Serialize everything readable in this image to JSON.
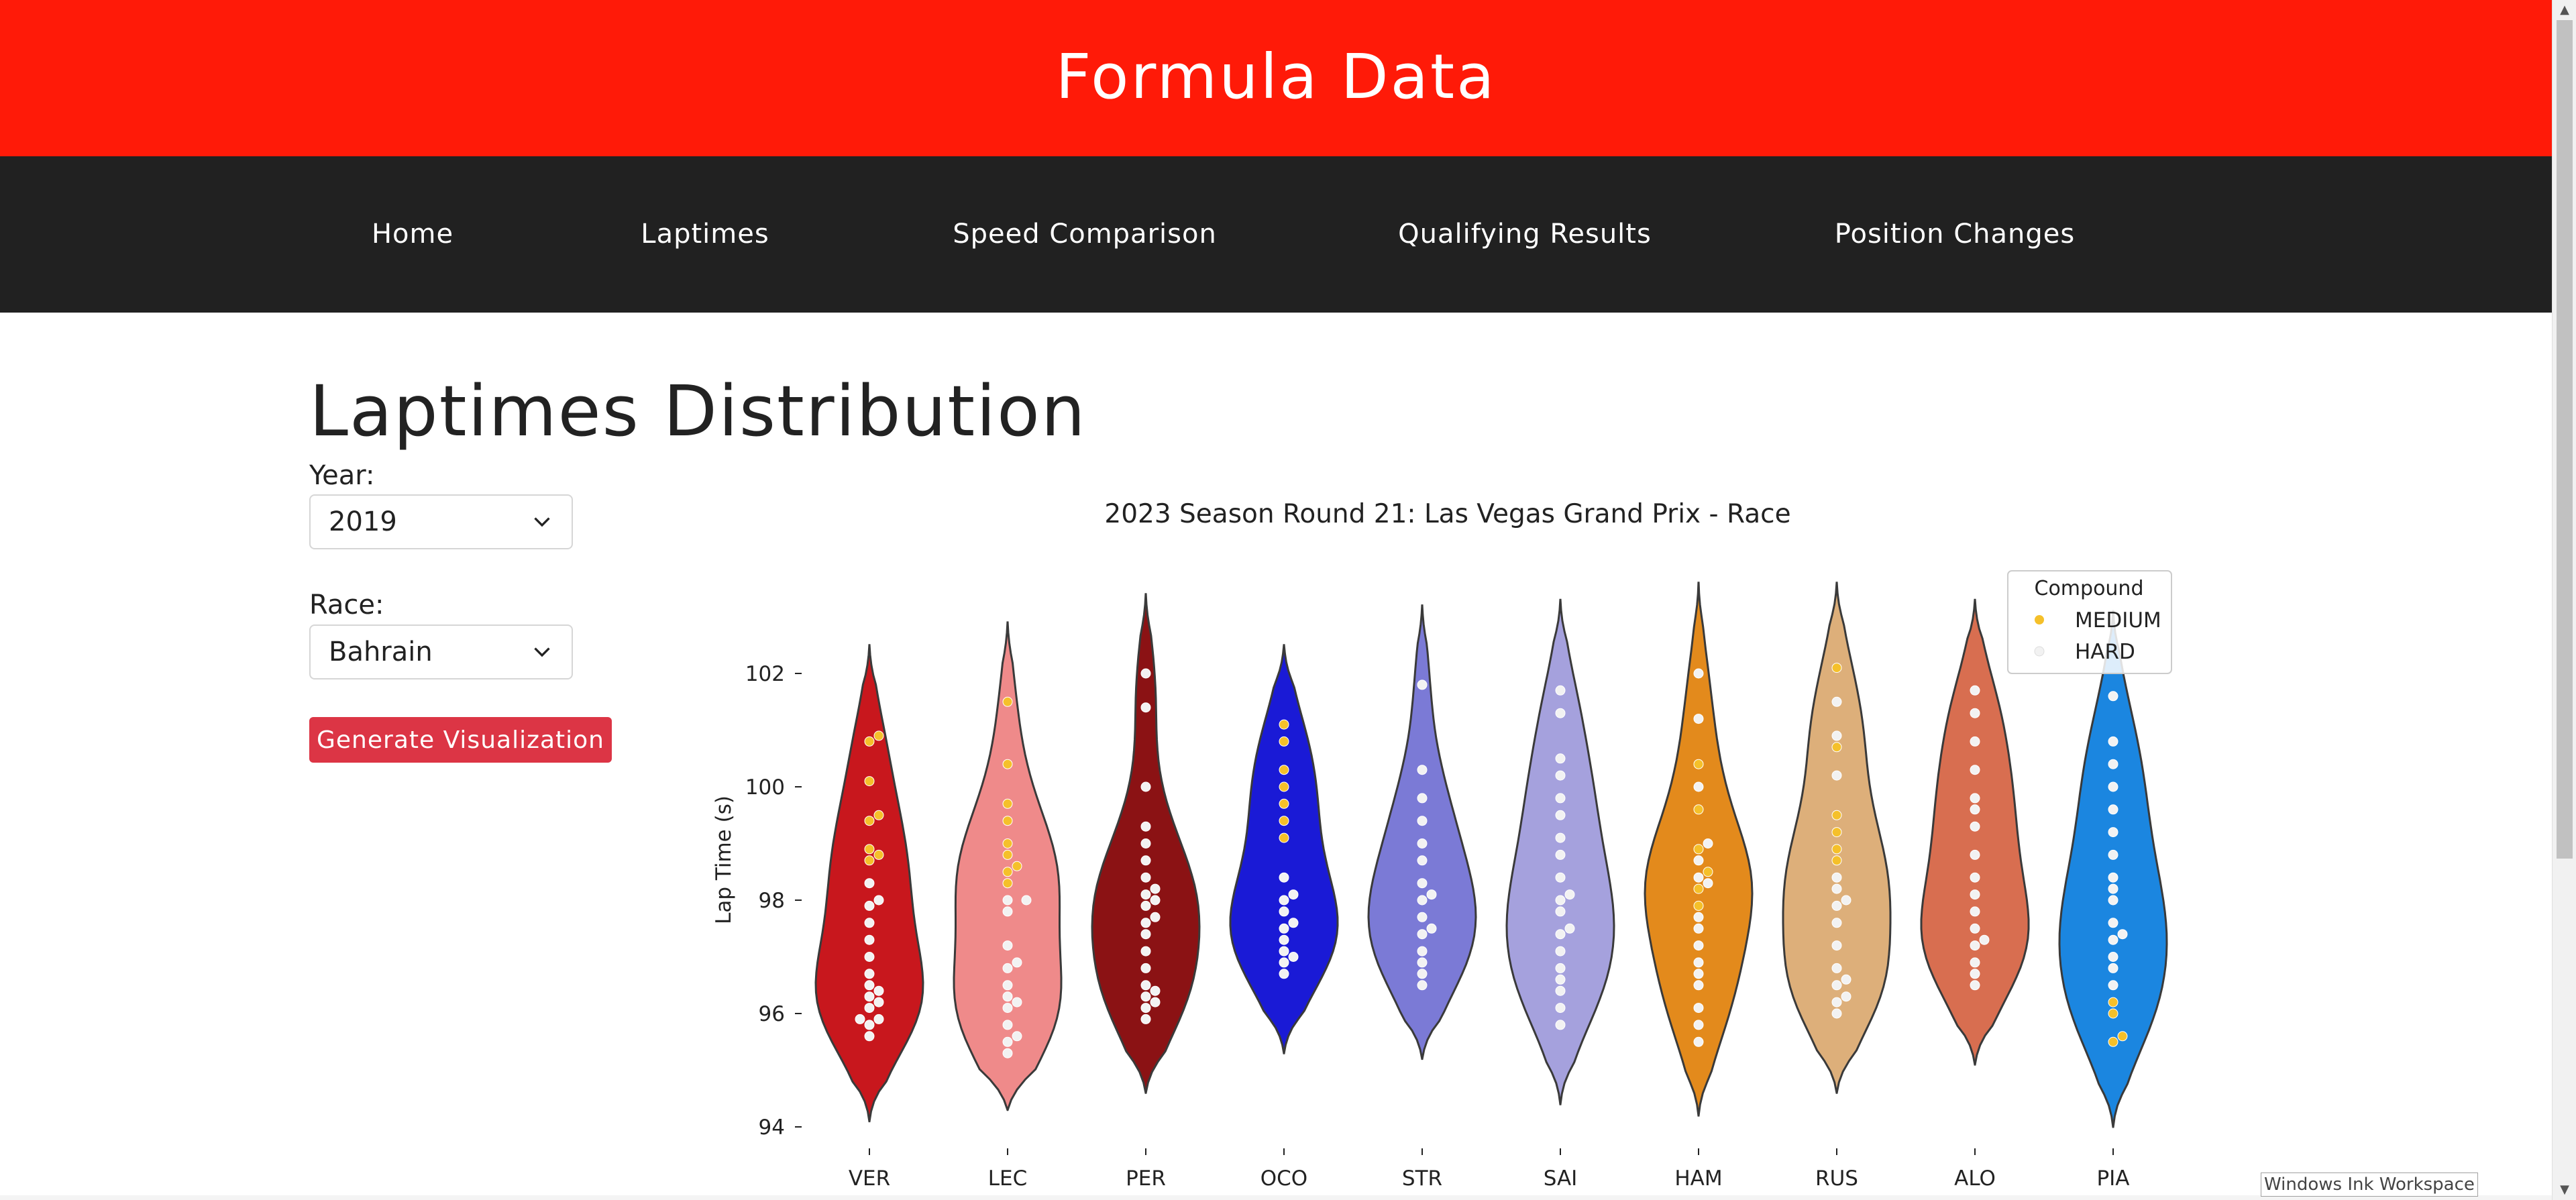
{
  "site_title": "Formula Data",
  "nav": [
    "Home",
    "Laptimes",
    "Speed Comparison",
    "Qualifying Results",
    "Position Changes"
  ],
  "page_heading": "Laptimes Distribution",
  "form": {
    "year_label": "Year:",
    "year_value": "2019",
    "race_label": "Race:",
    "race_value": "Bahrain",
    "generate_label": "Generate Visualization"
  },
  "taskbar_tooltip": "Windows Ink Workspace",
  "colors": {
    "header_bg": "#ff1a08",
    "nav_bg": "#212121",
    "button_bg": "#dc3545",
    "medium": "#f5c02a",
    "hard": "#f2f2f2"
  },
  "chart_data": {
    "type": "violin",
    "title": "2023 Season Round 21: Las Vegas Grand Prix - Race",
    "ylabel": "Lap Time (s)",
    "xlabel": "",
    "categories": [
      "VER",
      "LEC",
      "PER",
      "OCO",
      "STR",
      "SAI",
      "HAM",
      "RUS",
      "ALO",
      "PIA"
    ],
    "ylim": [
      93.6,
      104.6
    ],
    "yticks": [
      "94",
      "96",
      "98",
      "100",
      "102"
    ],
    "legend": {
      "title": "Compound",
      "placement": "top-right",
      "entries": [
        {
          "name": "MEDIUM",
          "color": "#f5c02a"
        },
        {
          "name": "HARD",
          "color": "#f2f2f2"
        }
      ]
    },
    "series": [
      {
        "driver": "VER",
        "color": "#c8171d",
        "min": 94.1,
        "max": 102.5,
        "medium": [
          100.9,
          100.8,
          100.1,
          99.4,
          99.5,
          98.9,
          98.8,
          98.7
        ],
        "hard": [
          98.3,
          97.9,
          97.6,
          97.3,
          96.7,
          96.5,
          96.4,
          96.3,
          96.1,
          95.9,
          95.8,
          95.6,
          97.0,
          98.0,
          96.2,
          95.9
        ]
      },
      {
        "driver": "LEC",
        "color": "#ef8a8a",
        "min": 94.3,
        "max": 102.9,
        "medium": [
          101.5,
          100.4,
          99.7,
          99.4,
          99.0,
          98.8,
          98.6,
          98.5,
          98.3
        ],
        "hard": [
          98.0,
          97.8,
          97.2,
          96.8,
          96.5,
          96.3,
          96.1,
          95.8,
          95.5,
          95.3,
          96.9,
          95.6,
          98.0,
          96.2
        ]
      },
      {
        "driver": "PER",
        "color": "#8b1214",
        "min": 94.6,
        "max": 103.4,
        "medium": [],
        "hard": [
          102.0,
          101.4,
          100.0,
          99.3,
          99.0,
          98.7,
          98.4,
          98.2,
          98.0,
          97.7,
          97.4,
          97.1,
          96.8,
          96.5,
          96.3,
          96.1,
          95.9,
          97.6,
          98.1,
          96.4,
          96.2,
          97.9
        ]
      },
      {
        "driver": "OCO",
        "color": "#1a1ad6",
        "min": 95.3,
        "max": 102.5,
        "medium": [
          101.1,
          100.8,
          100.3,
          100.0,
          99.7,
          99.4,
          99.1
        ],
        "hard": [
          98.4,
          98.1,
          97.8,
          97.6,
          97.3,
          97.1,
          96.9,
          96.7,
          98.0,
          97.5,
          97.0
        ]
      },
      {
        "driver": "STR",
        "color": "#7b7ad6",
        "min": 95.2,
        "max": 103.2,
        "medium": [],
        "hard": [
          101.8,
          100.3,
          99.8,
          99.4,
          99.0,
          98.7,
          98.3,
          98.0,
          97.7,
          97.4,
          97.1,
          96.9,
          96.7,
          96.5,
          98.1,
          97.5
        ]
      },
      {
        "driver": "SAI",
        "color": "#a5a1dd",
        "min": 94.4,
        "max": 103.3,
        "medium": [],
        "hard": [
          101.7,
          101.3,
          100.5,
          100.2,
          99.8,
          99.5,
          99.1,
          98.8,
          98.4,
          98.1,
          97.8,
          97.4,
          97.1,
          96.8,
          96.4,
          96.1,
          95.8,
          98.0,
          97.5,
          96.6
        ]
      },
      {
        "driver": "HAM",
        "color": "#e38a1c",
        "min": 94.2,
        "max": 103.6,
        "medium": [
          100.4,
          99.6,
          98.9,
          98.5,
          98.2,
          97.9
        ],
        "hard": [
          102.0,
          101.2,
          100.0,
          99.0,
          98.7,
          98.3,
          97.5,
          97.2,
          96.9,
          96.5,
          96.1,
          95.8,
          95.5,
          96.7,
          97.7,
          98.4
        ]
      },
      {
        "driver": "RUS",
        "color": "#ddaf7a",
        "min": 94.6,
        "max": 103.6,
        "medium": [
          102.1,
          100.7,
          99.5,
          99.2,
          98.9,
          98.7
        ],
        "hard": [
          101.5,
          100.9,
          100.2,
          98.4,
          98.0,
          97.6,
          97.2,
          96.8,
          96.5,
          96.2,
          96.0,
          98.2,
          96.6,
          96.3,
          97.9
        ]
      },
      {
        "driver": "ALO",
        "color": "#d86e50",
        "min": 95.1,
        "max": 103.3,
        "medium": [],
        "hard": [
          101.7,
          101.3,
          100.8,
          100.3,
          99.8,
          99.3,
          98.8,
          98.4,
          98.1,
          97.8,
          97.5,
          97.2,
          96.9,
          96.7,
          96.5,
          99.6,
          97.3
        ]
      },
      {
        "driver": "PIA",
        "color": "#1b86e0",
        "min": 94.0,
        "max": 103.1,
        "medium": [
          96.2,
          96.0,
          95.6,
          95.5
        ],
        "hard": [
          101.6,
          100.8,
          100.4,
          100.0,
          99.6,
          99.2,
          98.8,
          98.4,
          98.0,
          97.6,
          97.3,
          97.0,
          96.8,
          96.5,
          97.4,
          98.2
        ]
      }
    ]
  }
}
